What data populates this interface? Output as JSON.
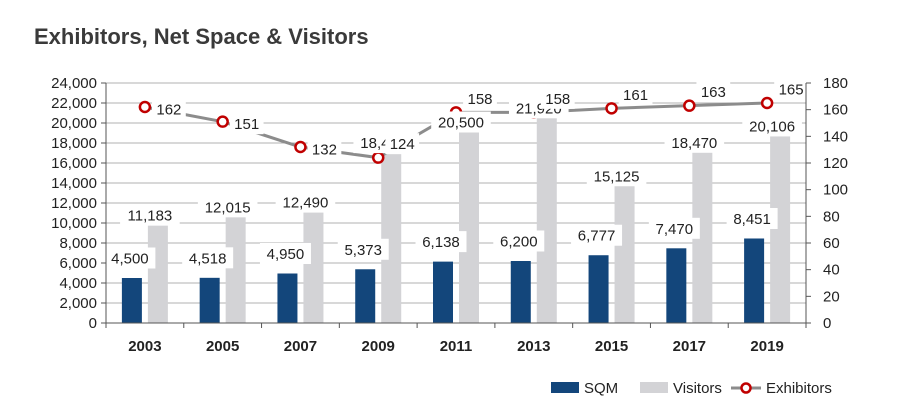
{
  "title": "Exhibitors, Net Space & Visitors",
  "colors": {
    "sqm": "#13467b",
    "visitors": "#d3d3d6",
    "exhibitors_line": "#8c8c8c",
    "exhibitors_marker": "#c00000"
  },
  "legend": {
    "sqm": "SQM",
    "visitors": "Visitors",
    "exhibitors": "Exhibitors"
  },
  "chart_data": {
    "type": "bar",
    "categories": [
      "2003",
      "2005",
      "2007",
      "2009",
      "2011",
      "2013",
      "2015",
      "2017",
      "2019"
    ],
    "series": [
      {
        "name": "SQM",
        "type": "bar",
        "axis": "left",
        "values": [
          4500,
          4518,
          4950,
          5373,
          6138,
          6200,
          6777,
          7470,
          8451
        ],
        "labels": [
          "4,500",
          "4,518",
          "4,950",
          "5,373",
          "6,138",
          "6,200",
          "6,777",
          "7,470",
          "8,451"
        ]
      },
      {
        "name": "Visitors",
        "type": "bar",
        "axis": "left",
        "values": [
          11183,
          12015,
          12490,
          18440,
          20500,
          21920,
          15125,
          18470,
          20106
        ],
        "labels": [
          "11,183",
          "12,015",
          "12,490",
          "18,440",
          "20,500",
          "21,920",
          "15,125",
          "18,470",
          "20,106"
        ]
      },
      {
        "name": "Exhibitors",
        "type": "line",
        "axis": "right",
        "values": [
          162,
          151,
          132,
          124,
          158,
          158,
          161,
          163,
          165
        ],
        "labels": [
          "162",
          "151",
          "132",
          "124",
          "158",
          "158",
          "161",
          "163",
          "165"
        ]
      }
    ],
    "ylim_left": [
      0,
      24000
    ],
    "yticks_left": [
      "0",
      "2,000",
      "4,000",
      "6,000",
      "8,000",
      "10,000",
      "12,000",
      "14,000",
      "16,000",
      "18,000",
      "20,000",
      "22,000",
      "24,000"
    ],
    "ylim_right": [
      0,
      180
    ],
    "yticks_right": [
      "0",
      "20",
      "40",
      "60",
      "80",
      "100",
      "120",
      "140",
      "160",
      "180"
    ],
    "grid": true,
    "legend_position": "bottom-right"
  }
}
